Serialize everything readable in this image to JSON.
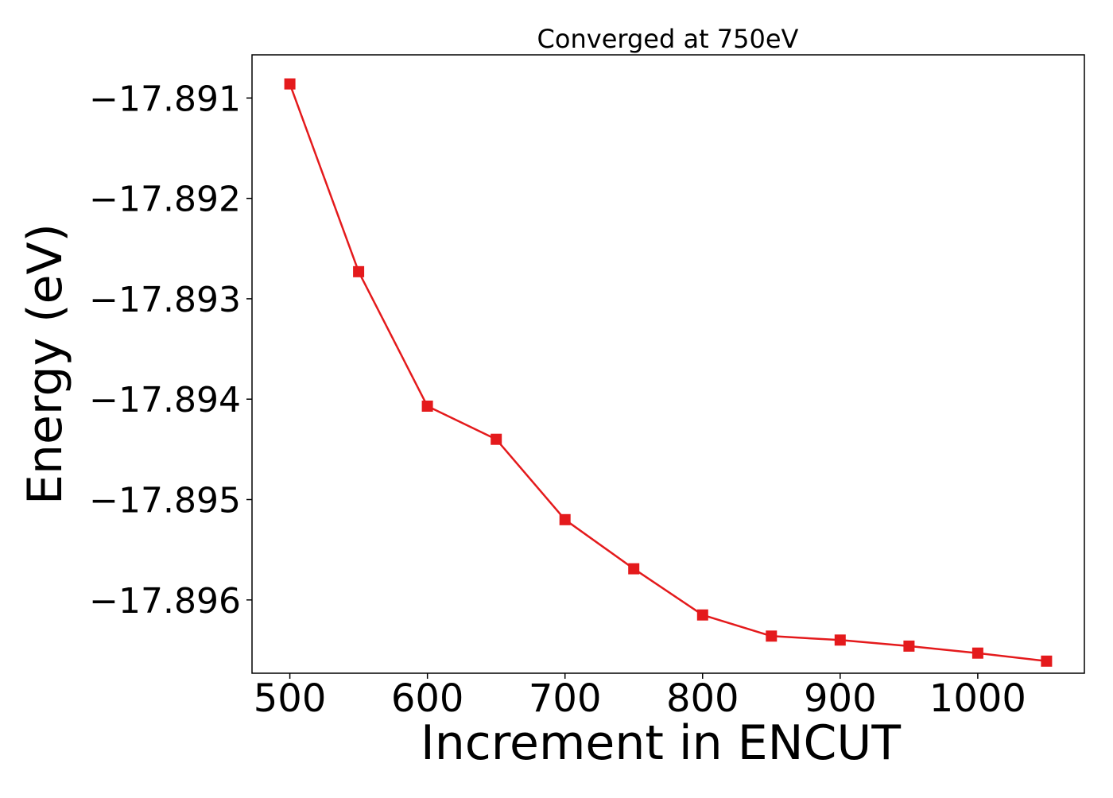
{
  "chart_data": {
    "type": "line",
    "title": "Converged at 750eV",
    "xlabel": "Increment in ENCUT",
    "ylabel": "Energy (eV)",
    "xlim": [
      472.5,
      1077.5
    ],
    "ylim": [
      -17.89673,
      -17.89057
    ],
    "x_ticks": [
      500,
      600,
      700,
      800,
      900,
      1000
    ],
    "x_tick_labels": [
      "500",
      "600",
      "700",
      "800",
      "900",
      "1000"
    ],
    "y_ticks": [
      -17.891,
      -17.892,
      -17.893,
      -17.894,
      -17.895,
      -17.896
    ],
    "y_tick_labels": [
      "−17.891",
      "−17.892",
      "−17.893",
      "−17.894",
      "−17.895",
      "−17.896"
    ],
    "grid": false,
    "legend": false,
    "series": [
      {
        "color": "#e41a1c",
        "marker": "square",
        "x": [
          500,
          550,
          600,
          650,
          700,
          750,
          800,
          850,
          900,
          950,
          1000,
          1050
        ],
        "y": [
          -17.89086,
          -17.89273,
          -17.89407,
          -17.8944,
          -17.8952,
          -17.89569,
          -17.89615,
          -17.89636,
          -17.8964,
          -17.89646,
          -17.89653,
          -17.89661
        ]
      }
    ]
  }
}
